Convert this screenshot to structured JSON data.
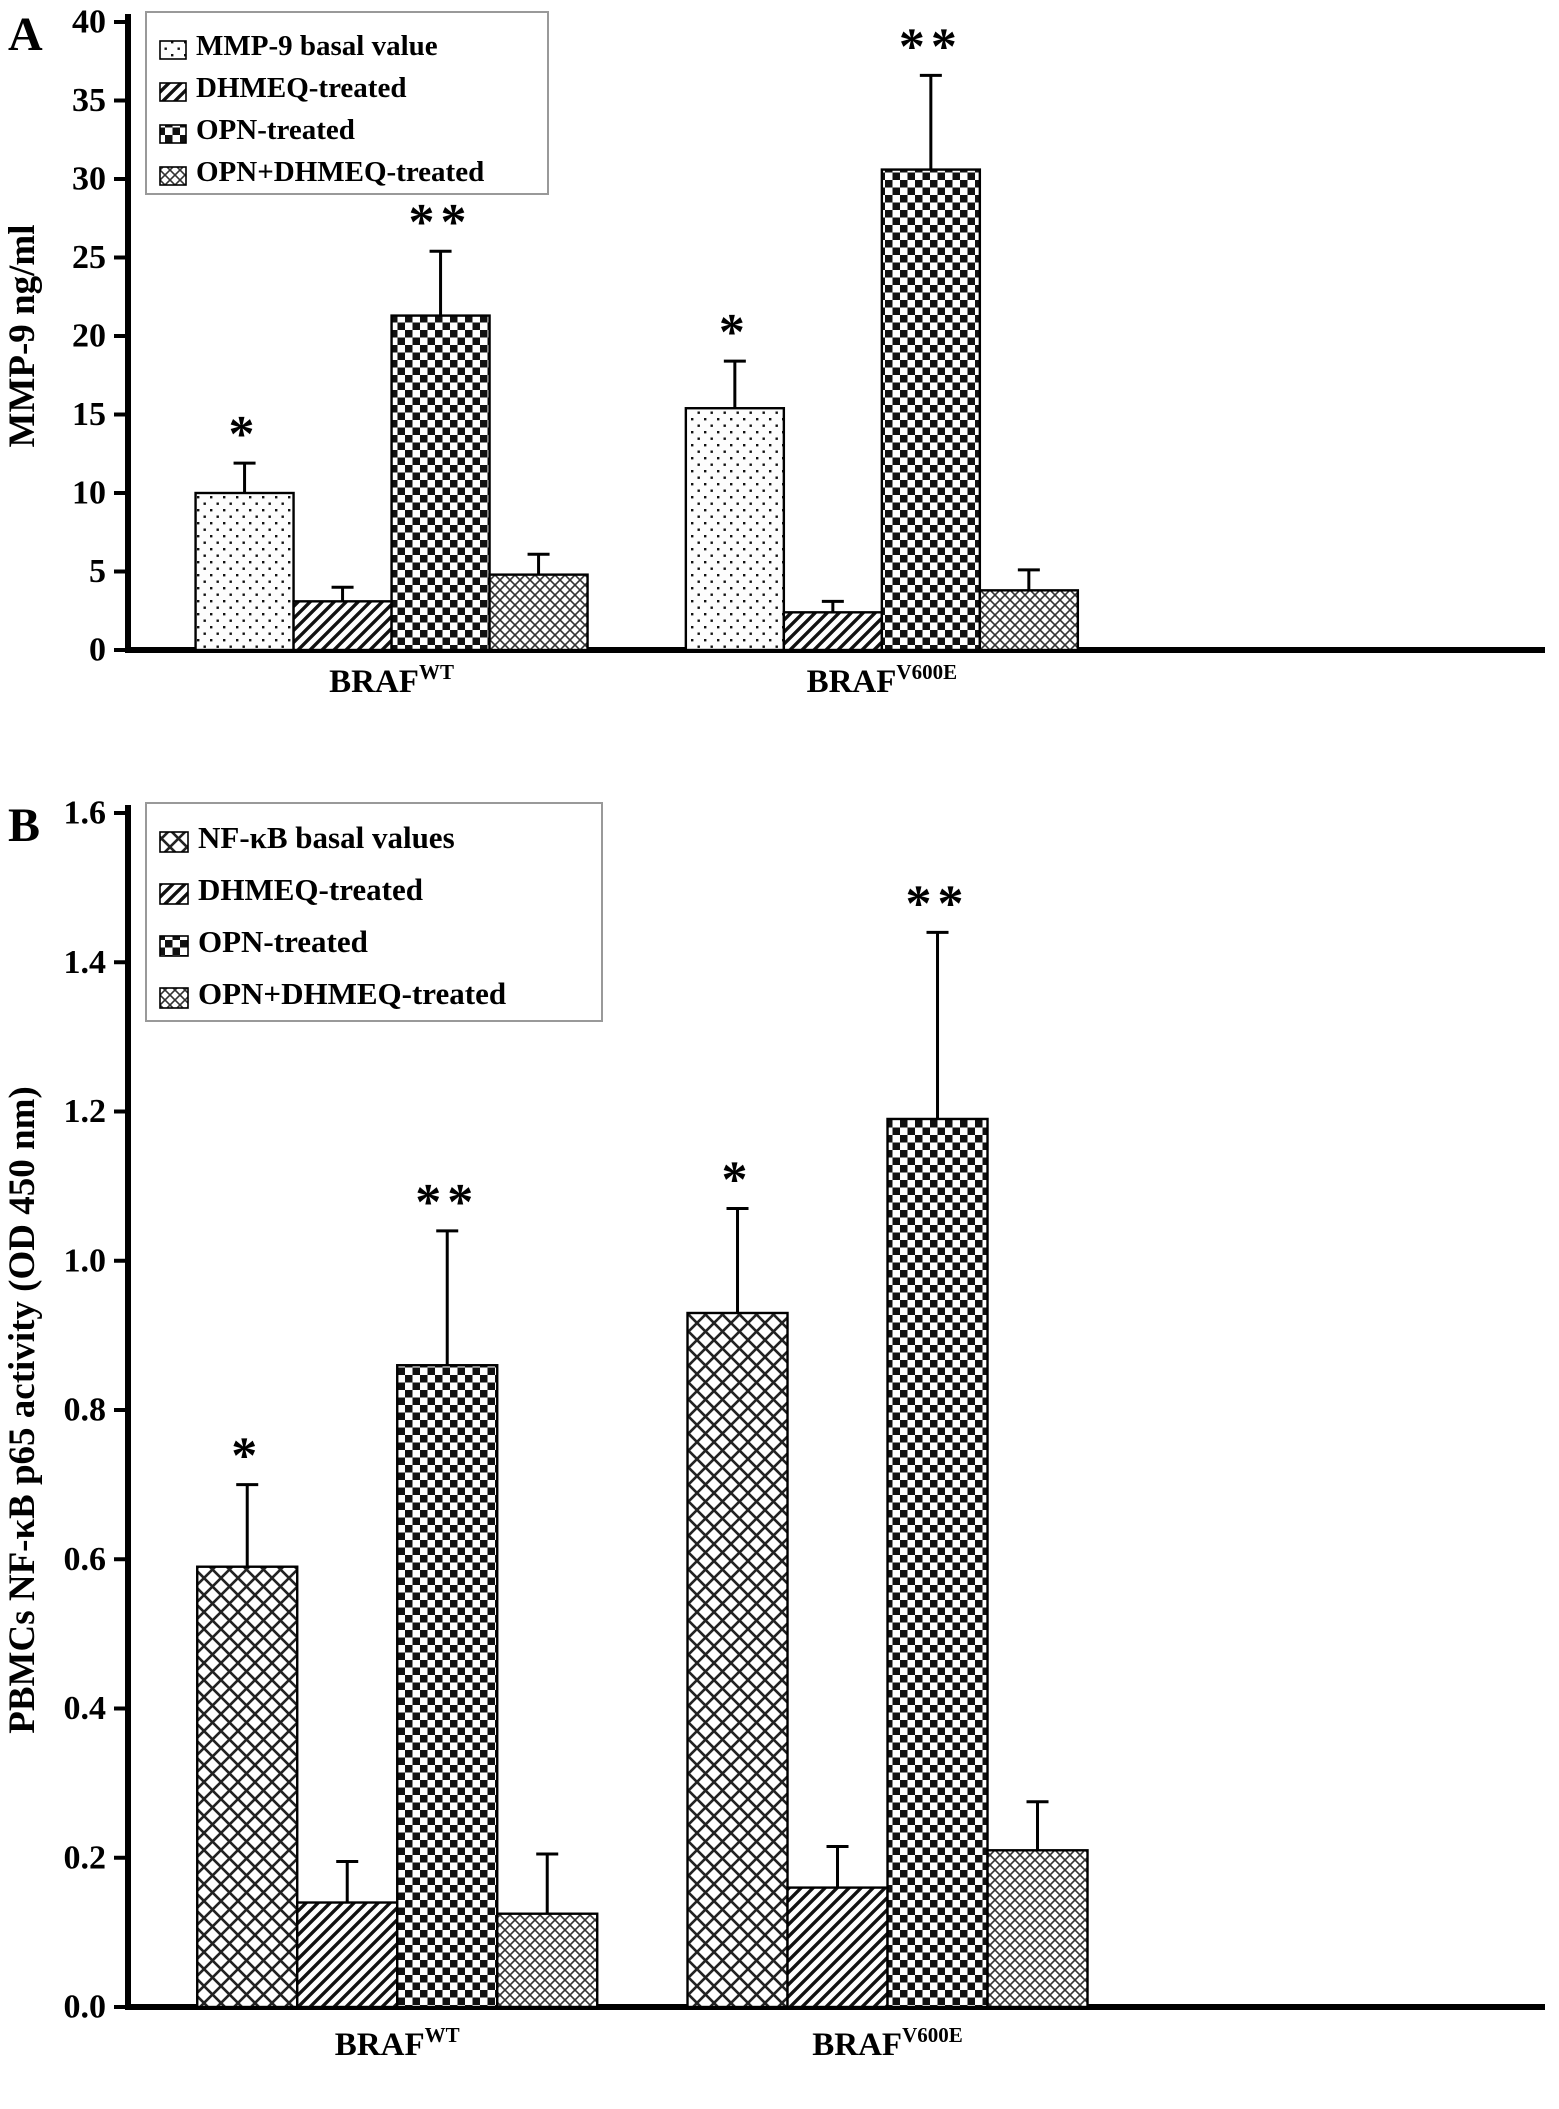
{
  "figure": {
    "description": "Two-panel bar chart figure",
    "colors": {
      "background": "#ffffff",
      "bar_stroke": "#000000",
      "pattern_ink": "#111111",
      "legend_border": "#999999"
    }
  },
  "chart_data": [
    {
      "type": "bar",
      "panel": "A",
      "ylabel": "MMP-9 ng/ml",
      "ylim": [
        0,
        40
      ],
      "yticks": [
        "0",
        "5",
        "10",
        "15",
        "20",
        "25",
        "30",
        "35",
        "40"
      ],
      "grid": false,
      "legend_position": "upper-left-inside",
      "categories": [
        {
          "base": "BRAF",
          "sup": "WT"
        },
        {
          "base": "BRAF",
          "sup": "V600E"
        }
      ],
      "series": [
        {
          "name": "MMP-9 basal value",
          "pattern": "dots",
          "values": [
            10.0,
            15.4
          ],
          "errors": [
            1.9,
            3.0
          ],
          "sig": [
            "*",
            "*"
          ]
        },
        {
          "name": "DHMEQ-treated",
          "pattern": "diagonal",
          "values": [
            3.1,
            2.4
          ],
          "errors": [
            0.9,
            0.7
          ],
          "sig": [
            null,
            null
          ]
        },
        {
          "name": "OPN-treated",
          "pattern": "checker",
          "values": [
            21.3,
            30.6
          ],
          "errors": [
            4.1,
            6.0
          ],
          "sig": [
            "**",
            "**"
          ]
        },
        {
          "name": "OPN+DHMEQ-treated",
          "pattern": "crosshatch",
          "values": [
            4.8,
            3.8
          ],
          "errors": [
            1.3,
            1.3
          ],
          "sig": [
            null,
            null
          ]
        }
      ]
    },
    {
      "type": "bar",
      "panel": "B",
      "ylabel": "PBMCs NF-κB p65 activity (OD 450 nm)",
      "ylim": [
        0,
        1.6
      ],
      "yticks": [
        "0.0",
        "0.2",
        "0.4",
        "0.6",
        "0.8",
        "1.0",
        "1.2",
        "1.4",
        "1.6"
      ],
      "grid": false,
      "legend_position": "upper-left-inside",
      "categories": [
        {
          "base": "BRAF",
          "sup": "WT"
        },
        {
          "base": "BRAF",
          "sup": "V600E"
        }
      ],
      "series": [
        {
          "name": "NF-κB basal values",
          "pattern": "basket",
          "values": [
            0.59,
            0.93
          ],
          "errors": [
            0.11,
            0.14
          ],
          "sig": [
            "*",
            "*"
          ]
        },
        {
          "name": "DHMEQ-treated",
          "pattern": "diagonal",
          "values": [
            0.14,
            0.16
          ],
          "errors": [
            0.055,
            0.055
          ],
          "sig": [
            null,
            null
          ]
        },
        {
          "name": "OPN-treated",
          "pattern": "checker",
          "values": [
            0.86,
            1.19
          ],
          "errors": [
            0.18,
            0.25
          ],
          "sig": [
            "**",
            "**"
          ]
        },
        {
          "name": "OPN+DHMEQ-treated",
          "pattern": "crosshatch",
          "values": [
            0.125,
            0.21
          ],
          "errors": [
            0.08,
            0.065
          ],
          "sig": [
            null,
            null
          ]
        }
      ]
    }
  ]
}
